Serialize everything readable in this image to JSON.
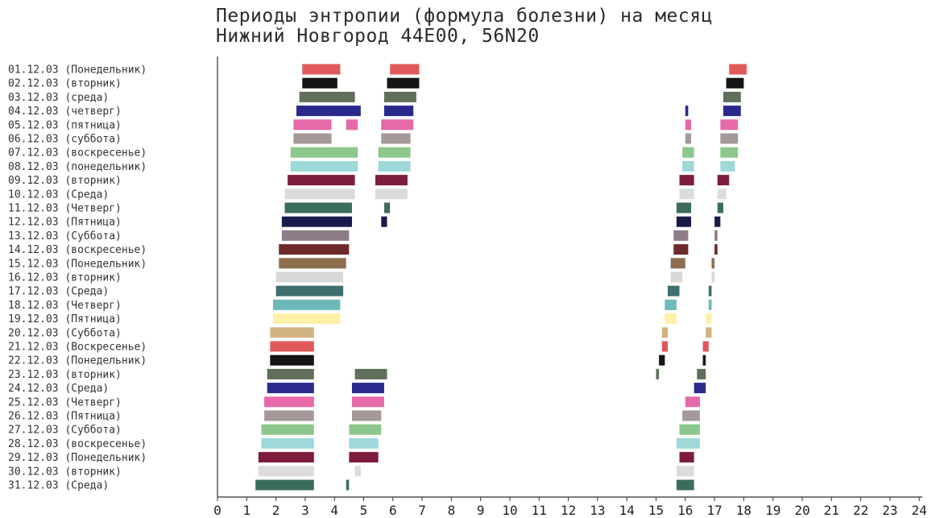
{
  "title_line1": "Периоды энтропии (формула болезни) на месяц",
  "title_line2": "Нижний Новгород 44E00, 56N20",
  "chart_data": {
    "type": "gantt",
    "title": "Периоды энтропии (формула болезни) на месяц",
    "subtitle": "Нижний Новгород 44E00, 56N20",
    "xlim": [
      0,
      24
    ],
    "xticks": [
      0,
      1,
      2,
      3,
      4,
      5,
      6,
      7,
      8,
      9,
      10,
      11,
      12,
      13,
      14,
      15,
      16,
      17,
      18,
      19,
      20,
      21,
      22,
      23,
      24
    ],
    "grid": false,
    "rows": [
      {
        "label": "01.12.03 (Понедельник)",
        "color": "#e05a5a",
        "intervals": [
          [
            2.9,
            4.2
          ],
          [
            5.9,
            6.9
          ],
          [
            17.5,
            18.1
          ]
        ]
      },
      {
        "label": "02.12.03 (вторник)",
        "color": "#151515",
        "intervals": [
          [
            2.9,
            4.1
          ],
          [
            5.8,
            6.9
          ],
          [
            17.4,
            18.0
          ]
        ]
      },
      {
        "label": "03.12.03 (среда)",
        "color": "#5f6f5a",
        "intervals": [
          [
            2.8,
            4.7
          ],
          [
            5.7,
            6.8
          ],
          [
            17.3,
            17.9
          ]
        ]
      },
      {
        "label": "04.12.03 (четверг)",
        "color": "#2a2a8c",
        "intervals": [
          [
            2.7,
            4.9
          ],
          [
            5.7,
            6.7
          ],
          [
            16.0,
            16.1
          ],
          [
            17.3,
            17.9
          ]
        ]
      },
      {
        "label": "05.12.03 (пятница)",
        "color": "#e66aa8",
        "intervals": [
          [
            2.6,
            3.9
          ],
          [
            4.4,
            4.8
          ],
          [
            5.6,
            6.7
          ],
          [
            16.0,
            16.2
          ],
          [
            17.2,
            17.8
          ]
        ]
      },
      {
        "label": "06.12.03 (суббота)",
        "color": "#a49898",
        "intervals": [
          [
            2.6,
            3.9
          ],
          [
            5.6,
            6.6
          ],
          [
            16.0,
            16.2
          ],
          [
            17.2,
            17.8
          ]
        ]
      },
      {
        "label": "07.12.03 (воскресенье)",
        "color": "#8cc88c",
        "intervals": [
          [
            2.5,
            4.8
          ],
          [
            5.5,
            6.6
          ],
          [
            15.9,
            16.3
          ],
          [
            17.2,
            17.8
          ]
        ]
      },
      {
        "label": "08.12.03 (понедельник)",
        "color": "#9ed8d8",
        "intervals": [
          [
            2.5,
            4.8
          ],
          [
            5.5,
            6.6
          ],
          [
            15.9,
            16.3
          ],
          [
            17.2,
            17.7
          ]
        ]
      },
      {
        "label": "09.12.03 (вторник)",
        "color": "#7e1c3c",
        "intervals": [
          [
            2.4,
            4.7
          ],
          [
            5.4,
            6.5
          ],
          [
            15.8,
            16.3
          ],
          [
            17.1,
            17.5
          ]
        ]
      },
      {
        "label": "10.12.03 (Среда)",
        "color": "#dcdcdc",
        "intervals": [
          [
            2.3,
            4.7
          ],
          [
            5.4,
            6.5
          ],
          [
            15.8,
            16.3
          ],
          [
            17.1,
            17.4
          ]
        ]
      },
      {
        "label": "11.12.03 (Четверг)",
        "color": "#3c6c5c",
        "intervals": [
          [
            2.3,
            4.6
          ],
          [
            5.7,
            5.9
          ],
          [
            15.7,
            16.2
          ],
          [
            17.1,
            17.3
          ]
        ]
      },
      {
        "label": "12.12.03 (Пятница)",
        "color": "#1a1a4a",
        "intervals": [
          [
            2.2,
            4.6
          ],
          [
            5.6,
            5.8
          ],
          [
            15.7,
            16.2
          ],
          [
            17.0,
            17.2
          ]
        ]
      },
      {
        "label": "13.12.03 (Суббота)",
        "color": "#8e7c88",
        "intervals": [
          [
            2.2,
            4.5
          ],
          [
            15.6,
            16.1
          ],
          [
            17.0,
            17.1
          ]
        ]
      },
      {
        "label": "14.12.03 (воскресенье)",
        "color": "#6e2a2a",
        "intervals": [
          [
            2.1,
            4.5
          ],
          [
            15.6,
            16.1
          ],
          [
            17.0,
            17.1
          ]
        ]
      },
      {
        "label": "15.12.03 (Понедельник)",
        "color": "#8e6e4e",
        "intervals": [
          [
            2.1,
            4.4
          ],
          [
            15.5,
            16.0
          ],
          [
            16.9,
            17.0
          ]
        ]
      },
      {
        "label": "16.12.03 (вторник)",
        "color": "#d8d8d8",
        "intervals": [
          [
            2.0,
            4.3
          ],
          [
            15.5,
            15.9
          ],
          [
            16.9,
            17.0
          ]
        ]
      },
      {
        "label": "17.12.03 (Среда)",
        "color": "#3e6e6e",
        "intervals": [
          [
            2.0,
            4.3
          ],
          [
            15.4,
            15.8
          ],
          [
            16.8,
            16.9
          ]
        ]
      },
      {
        "label": "18.12.03 (Четверг)",
        "color": "#6ebaba",
        "intervals": [
          [
            1.9,
            4.2
          ],
          [
            15.3,
            15.7
          ],
          [
            16.8,
            16.9
          ]
        ]
      },
      {
        "label": "19.12.03 (Пятница)",
        "color": "#fff0a8",
        "intervals": [
          [
            1.9,
            4.2
          ],
          [
            15.3,
            15.7
          ],
          [
            16.7,
            16.9
          ]
        ]
      },
      {
        "label": "20.12.03 (Суббота)",
        "color": "#d2b480",
        "intervals": [
          [
            1.8,
            3.3
          ],
          [
            15.2,
            15.4
          ],
          [
            16.7,
            16.9
          ]
        ]
      },
      {
        "label": "21.12.03 (Воскресенье)",
        "color": "#e05a5a",
        "intervals": [
          [
            1.8,
            3.3
          ],
          [
            15.2,
            15.4
          ],
          [
            16.6,
            16.8
          ]
        ]
      },
      {
        "label": "22.12.03 (Понедельник)",
        "color": "#151515",
        "intervals": [
          [
            1.8,
            3.3
          ],
          [
            15.1,
            15.3
          ],
          [
            16.6,
            16.7
          ]
        ]
      },
      {
        "label": "23.12.03 (вторник)",
        "color": "#5f6f5a",
        "intervals": [
          [
            1.7,
            3.3
          ],
          [
            4.7,
            5.8
          ],
          [
            15.0,
            15.1
          ],
          [
            16.4,
            16.7
          ]
        ]
      },
      {
        "label": "24.12.03 (Среда)",
        "color": "#2a2a8c",
        "intervals": [
          [
            1.7,
            3.3
          ],
          [
            4.6,
            5.7
          ],
          [
            16.3,
            16.7
          ]
        ]
      },
      {
        "label": "25.12.03 (Четверг)",
        "color": "#e66aa8",
        "intervals": [
          [
            1.6,
            3.3
          ],
          [
            4.6,
            5.7
          ],
          [
            16.0,
            16.5
          ]
        ]
      },
      {
        "label": "26.12.03 (Пятница)",
        "color": "#a49898",
        "intervals": [
          [
            1.6,
            3.3
          ],
          [
            4.6,
            5.6
          ],
          [
            15.9,
            16.5
          ]
        ]
      },
      {
        "label": "27.12.03 (Суббота)",
        "color": "#8cc88c",
        "intervals": [
          [
            1.5,
            3.3
          ],
          [
            4.5,
            5.6
          ],
          [
            15.8,
            16.5
          ]
        ]
      },
      {
        "label": "28.12.03 (воскресенье)",
        "color": "#9ed8d8",
        "intervals": [
          [
            1.5,
            3.3
          ],
          [
            4.5,
            5.5
          ],
          [
            15.7,
            16.5
          ]
        ]
      },
      {
        "label": "29.12.03 (Понедельник)",
        "color": "#7e1c3c",
        "intervals": [
          [
            1.4,
            3.3
          ],
          [
            4.5,
            5.5
          ],
          [
            15.8,
            16.3
          ]
        ]
      },
      {
        "label": "30.12.03 (вторник)",
        "color": "#dcdcdc",
        "intervals": [
          [
            1.4,
            3.3
          ],
          [
            4.7,
            4.9
          ],
          [
            15.7,
            16.3
          ]
        ]
      },
      {
        "label": "31.12.03 (Среда)",
        "color": "#3c6c5c",
        "intervals": [
          [
            1.3,
            3.3
          ],
          [
            4.4,
            4.5
          ],
          [
            15.7,
            16.3
          ]
        ]
      }
    ]
  }
}
